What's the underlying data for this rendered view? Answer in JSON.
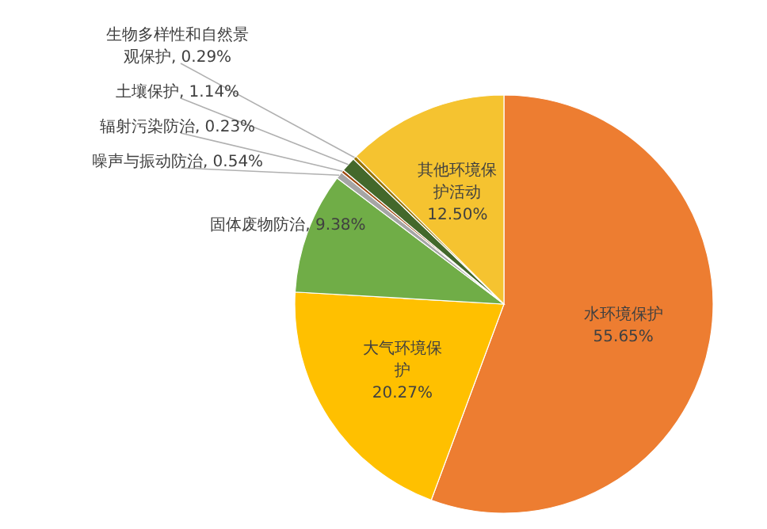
{
  "chart_data": {
    "type": "pie",
    "categories": [
      "水环境保护",
      "大气环境保护",
      "固体废物防治",
      "噪声与振动防治",
      "辐射污染防治",
      "土壤保护",
      "生物多样性和自然景观保护",
      "其他环境保护活动"
    ],
    "values": [
      55.65,
      20.27,
      9.38,
      0.54,
      0.23,
      1.14,
      0.29,
      12.5
    ],
    "value_labels": [
      "55.65%",
      "20.27%",
      "9.38%",
      "0.54%",
      "0.23%",
      "1.14%",
      "0.29%",
      "12.50%"
    ],
    "colors": [
      "#ed7d31",
      "#ffc000",
      "#70ad47",
      "#a5a5a5",
      "#9e480e",
      "#43682b",
      "#997300",
      "#f5c330"
    ]
  }
}
